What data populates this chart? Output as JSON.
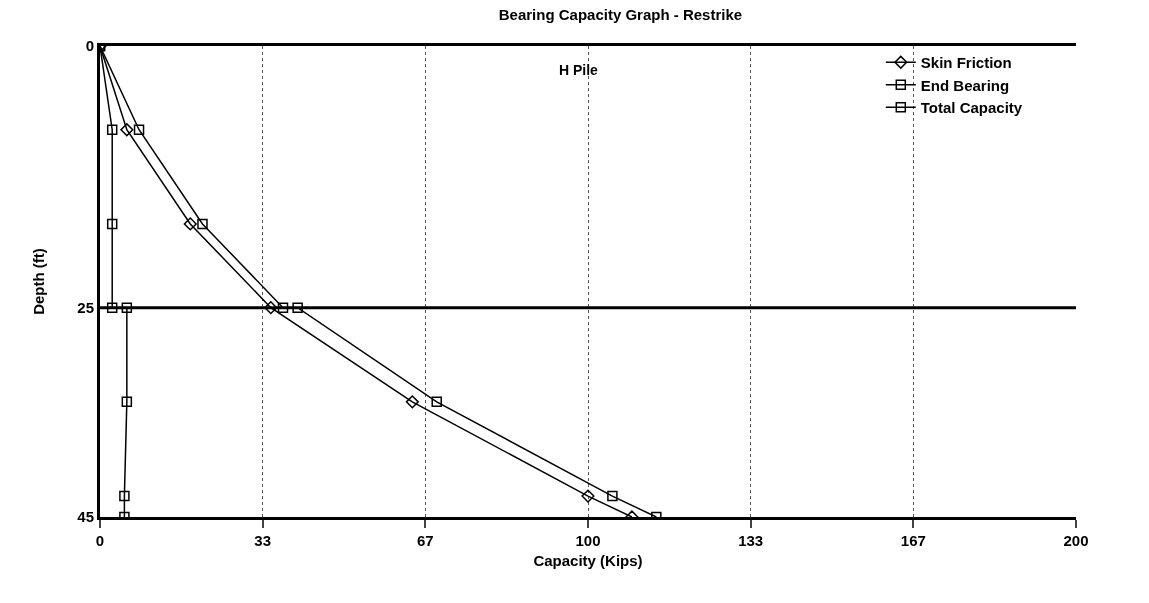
{
  "chart_data": {
    "type": "line",
    "title": "Bearing Capacity Graph - Restrike",
    "subtitle": "H Pile",
    "xlabel": "Capacity (Kips)",
    "ylabel": "Depth (ft)",
    "series": [
      {
        "name": "Skin Friction",
        "color": "#000000",
        "marker": "diamond",
        "x": [
          0,
          5.5,
          18.5,
          35,
          64,
          100,
          109
        ],
        "values": [
          0,
          8,
          17,
          25,
          34,
          43,
          45
        ]
      },
      {
        "name": "End Bearing",
        "color": "#000000",
        "marker": "square",
        "x": [
          0,
          2.5,
          2.5,
          2.5,
          5.5,
          5.5,
          5,
          5
        ],
        "values": [
          0,
          8,
          17,
          25,
          25,
          34,
          43,
          45
        ]
      },
      {
        "name": "Total Capacity",
        "color": "#000000",
        "marker": "square",
        "x": [
          0,
          8,
          21,
          37.5,
          40.5,
          69,
          105,
          114
        ],
        "values": [
          0,
          8,
          17,
          25,
          25,
          34,
          43,
          45
        ]
      }
    ],
    "xlim": [
      0,
      200
    ],
    "xticks": [
      0,
      {
        "value": 33.33,
        "label": "33"
      },
      {
        "value": 66.67,
        "label": "67"
      },
      100,
      {
        "value": 133.33,
        "label": "133"
      },
      {
        "value": 166.67,
        "label": "167"
      },
      200
    ],
    "ylim": [
      45,
      0
    ],
    "yticks": [
      0,
      25,
      45
    ],
    "grid": "x",
    "ref_lines": [
      {
        "axis": "y",
        "value": 25
      }
    ],
    "legend": "top right",
    "line_style": "solid"
  }
}
